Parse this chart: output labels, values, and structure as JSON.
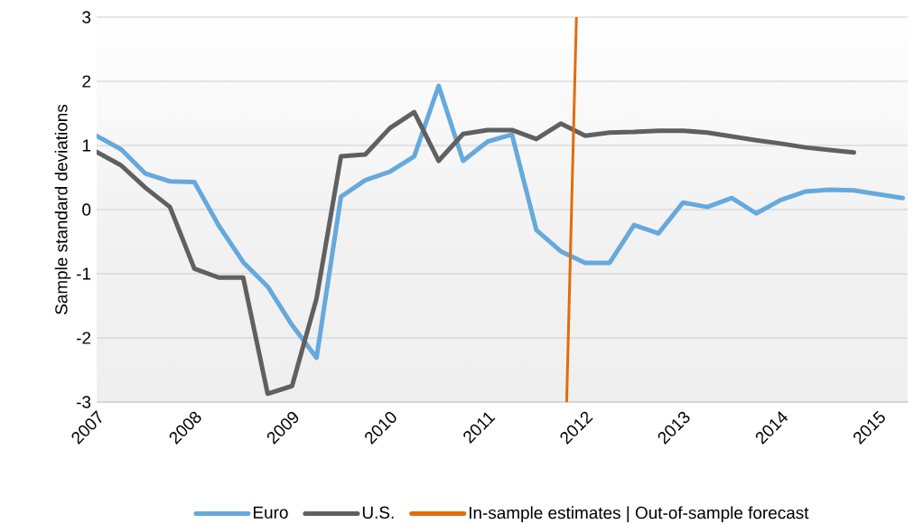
{
  "chart_data": {
    "type": "line",
    "ylabel": "Sample standard deviations",
    "x": [
      2007,
      2007.25,
      2007.5,
      2007.75,
      2008,
      2008.25,
      2008.5,
      2008.75,
      2009,
      2009.25,
      2009.5,
      2009.75,
      2010,
      2010.25,
      2010.5,
      2010.75,
      2011,
      2011.25,
      2011.5,
      2011.75,
      2012,
      2012.25,
      2012.5,
      2012.75,
      2013,
      2013.25,
      2013.5,
      2013.75,
      2014,
      2014.25,
      2014.5,
      2014.75,
      2015,
      2015.25
    ],
    "series": [
      {
        "name": "Euro",
        "color": "#65a9dd",
        "values": [
          1.15,
          0.94,
          0.56,
          0.44,
          0.43,
          -0.25,
          -0.82,
          -1.2,
          -1.8,
          -2.31,
          0.2,
          0.46,
          0.59,
          0.83,
          1.93,
          0.76,
          1.06,
          1.17,
          -0.32,
          -0.65,
          -0.83,
          -0.83,
          -0.24,
          -0.37,
          0.11,
          0.04,
          0.18,
          -0.06,
          0.15,
          0.28,
          0.31,
          0.3,
          0.24,
          0.18
        ]
      },
      {
        "name": "U.S.",
        "color": "#606060",
        "values": [
          0.9,
          0.69,
          0.34,
          0.04,
          -0.92,
          -1.06,
          -1.06,
          -2.87,
          -2.75,
          -1.39,
          0.83,
          0.86,
          1.27,
          1.52,
          0.76,
          1.18,
          1.24,
          1.24,
          1.1,
          1.34,
          1.15,
          1.2,
          1.21,
          1.23,
          1.23,
          1.2,
          1.14,
          1.08,
          1.03,
          0.97,
          0.93,
          0.89,
          null,
          null
        ]
      },
      {
        "name": "In-sample estimates | Out-of-sample forecast",
        "color": "#e36c09",
        "type": "line",
        "x": [
          2011.81,
          2011.91
        ],
        "values": [
          -3,
          3
        ]
      }
    ],
    "xlim": [
      2007,
      2015.3
    ],
    "xticks": [
      2007,
      2008,
      2009,
      2010,
      2011,
      2012,
      2013,
      2014,
      2015
    ],
    "ylim": [
      -3,
      3
    ],
    "yticks": [
      -3,
      -2,
      -1,
      0,
      1,
      2,
      3
    ],
    "grid": "y",
    "legend": "bottom",
    "marker": "none",
    "line_style": "solid"
  }
}
